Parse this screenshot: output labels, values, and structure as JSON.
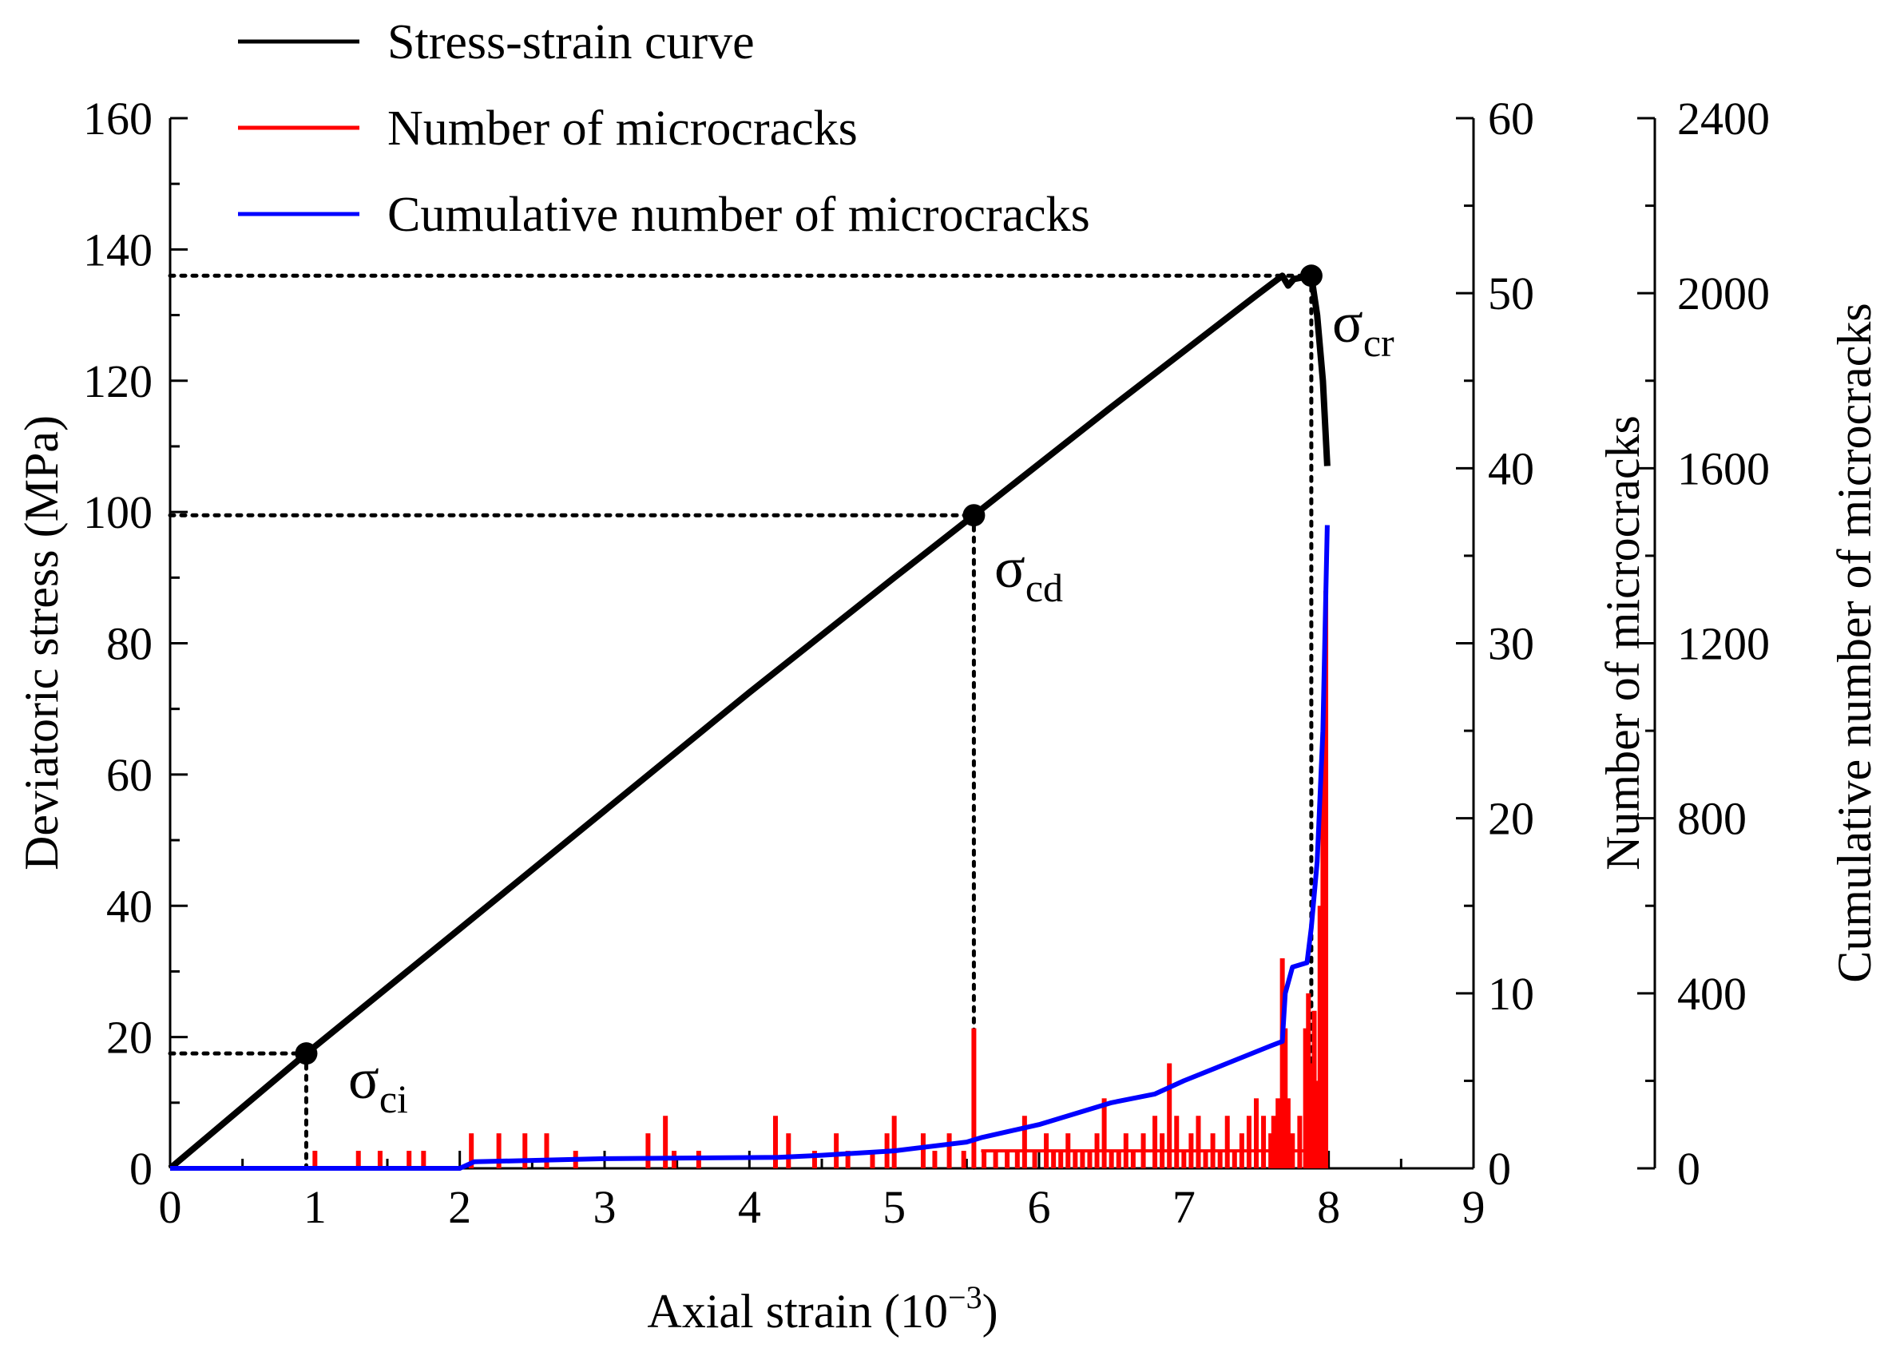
{
  "chart_data": {
    "type": "line",
    "xlabel": "Axial strain (10",
    "xlabel_exp": "−3",
    "xlabel_close": ")",
    "ylabel": "Deviatoric stress (MPa)",
    "y2label": "Number of microcracks",
    "y3label": "Cumulative number of microcracks",
    "xlim": [
      0,
      9
    ],
    "ylim": [
      0,
      160
    ],
    "y2lim": [
      0,
      60
    ],
    "y3lim": [
      0,
      2400
    ],
    "xticks": [
      "0",
      "1",
      "2",
      "3",
      "4",
      "5",
      "6",
      "7",
      "8",
      "9"
    ],
    "yticks": [
      "0",
      "20",
      "40",
      "60",
      "80",
      "100",
      "120",
      "140",
      "160"
    ],
    "y2ticks": [
      "0",
      "10",
      "20",
      "30",
      "40",
      "50",
      "60"
    ],
    "y3ticks": [
      "0",
      "400",
      "800",
      "1200",
      "1600",
      "2000",
      "2400"
    ],
    "legend": [
      {
        "label": "Stress-strain curve",
        "color": "#000000"
      },
      {
        "label": "Number of microcracks",
        "color": "#ff0000"
      },
      {
        "label": "Cumulative number of microcracks",
        "color": "#0000ff"
      }
    ],
    "series": [
      {
        "name": "Stress-strain curve",
        "axis": "y",
        "color": "#000000",
        "x": [
          0,
          0.94,
          2,
          3,
          4,
          5,
          5.55,
          6.5,
          7.5,
          7.68,
          7.72,
          7.76,
          7.88,
          7.92,
          7.96,
          7.99
        ],
        "y": [
          0,
          17.5,
          36.5,
          54.5,
          72.5,
          90,
          99.5,
          116,
          133,
          136,
          134.5,
          135.5,
          136,
          130,
          120,
          107
        ]
      },
      {
        "name": "Cumulative number of microcracks",
        "axis": "y3",
        "color": "#0000ff",
        "x": [
          0,
          1,
          2,
          2.1,
          3,
          4.2,
          4.5,
          5,
          5.5,
          5.6,
          6,
          6.5,
          6.8,
          7,
          7.3,
          7.6,
          7.68,
          7.7,
          7.75,
          7.85,
          7.88,
          7.92,
          7.96,
          7.99
        ],
        "y": [
          0,
          0,
          0,
          15,
          22,
          25,
          30,
          40,
          60,
          70,
          100,
          150,
          170,
          200,
          240,
          280,
          290,
          400,
          460,
          470,
          550,
          700,
          1000,
          1470
        ]
      },
      {
        "name": "Number of microcracks",
        "axis": "y2",
        "color": "#ff0000",
        "x": [
          1.0,
          1.3,
          1.45,
          1.65,
          1.75,
          2.08,
          2.27,
          2.45,
          2.6,
          2.8,
          3.3,
          3.42,
          3.48,
          3.65,
          4.18,
          4.27,
          4.45,
          4.6,
          4.68,
          4.85,
          4.95,
          5.0,
          5.2,
          5.28,
          5.38,
          5.48,
          5.55,
          5.62,
          5.7,
          5.78,
          5.85,
          5.9,
          5.97,
          6.05,
          6.1,
          6.15,
          6.2,
          6.25,
          6.3,
          6.35,
          6.4,
          6.45,
          6.5,
          6.55,
          6.6,
          6.65,
          6.72,
          6.8,
          6.85,
          6.9,
          6.95,
          7.0,
          7.05,
          7.1,
          7.15,
          7.2,
          7.25,
          7.3,
          7.35,
          7.4,
          7.45,
          7.5,
          7.55,
          7.6,
          7.62,
          7.65,
          7.68,
          7.7,
          7.72,
          7.75,
          7.8,
          7.84,
          7.86,
          7.88,
          7.9,
          7.92,
          7.94,
          7.96,
          7.98
        ],
        "y": [
          1,
          1,
          1,
          1,
          1,
          2,
          2,
          2,
          2,
          1,
          2,
          3,
          1,
          1,
          3,
          2,
          1,
          2,
          1,
          1,
          2,
          3,
          2,
          1,
          2,
          1,
          8,
          1,
          1,
          1,
          1,
          3,
          1,
          2,
          1,
          1,
          2,
          1,
          1,
          1,
          2,
          4,
          1,
          1,
          2,
          1,
          2,
          3,
          2,
          6,
          3,
          1,
          2,
          3,
          1,
          2,
          1,
          3,
          1,
          2,
          3,
          4,
          3,
          2,
          3,
          4,
          12,
          8,
          4,
          2,
          3,
          8,
          10,
          6,
          9,
          5,
          15,
          23,
          33
        ]
      }
    ],
    "annotations": [
      {
        "label": "σ",
        "sub": "ci",
        "x": 0.94,
        "y": 17.5
      },
      {
        "label": "σ",
        "sub": "cd",
        "x": 5.55,
        "y": 99.5
      },
      {
        "label": "σ",
        "sub": "cr",
        "x": 7.88,
        "y": 136
      }
    ]
  }
}
